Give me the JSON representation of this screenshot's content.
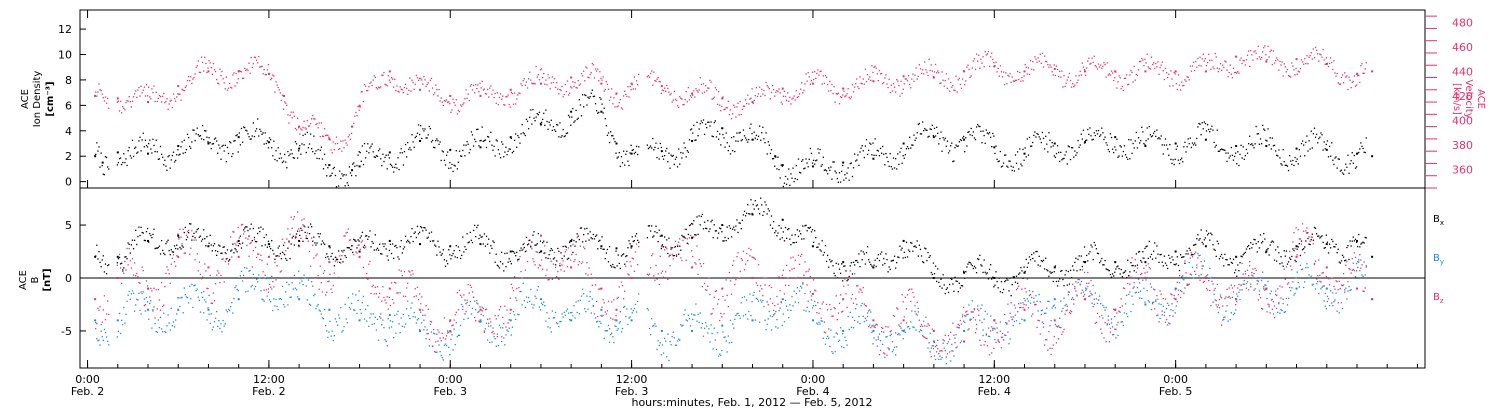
{
  "chart_data": [
    {
      "type": "scatter",
      "panel": "top",
      "ylabel_left": [
        "ACE",
        "Ion Density",
        "[cm⁻³]"
      ],
      "ylabel_right": [
        "ACE",
        "Velocity",
        "[km/s]"
      ],
      "ylim_left": [
        -0.5,
        13.5
      ],
      "ylim_right": [
        345,
        490
      ],
      "yticks_left": [
        0,
        2,
        4,
        6,
        8,
        10,
        12
      ],
      "yticks_right": [
        360,
        380,
        400,
        420,
        440,
        460,
        480
      ],
      "series": [
        {
          "axis": "left",
          "color": "#000000",
          "x": [
            0.5,
            1,
            2,
            4,
            6,
            8,
            10,
            12,
            14,
            16,
            17.5,
            18,
            20,
            22,
            24,
            26,
            28,
            30,
            32,
            34,
            35,
            36,
            38,
            40,
            42,
            44,
            45.5,
            46,
            48,
            50,
            52,
            54,
            56,
            58,
            60,
            62,
            64,
            66,
            68,
            70,
            72,
            74,
            76,
            78,
            80,
            82,
            84,
            85
          ],
          "y": [
            2,
            1.5,
            2.3,
            2.2,
            2.8,
            3,
            3.5,
            3.1,
            2.6,
            1.3,
            0.9,
            1.2,
            2.3,
            3.2,
            2.5,
            2.7,
            3.5,
            4.5,
            5.5,
            5.5,
            3,
            2.2,
            2.4,
            3.2,
            4.2,
            3.3,
            2,
            1.3,
            1.2,
            1.5,
            1.8,
            3,
            3.5,
            3.3,
            2.7,
            2.2,
            3,
            3.1,
            3.5,
            2.8,
            3,
            3.3,
            2.8,
            2.8,
            2.6,
            2.5,
            2.2,
            2
          ]
        },
        {
          "axis": "right",
          "color": "#E5336A",
          "x": [
            0.5,
            2,
            4,
            6,
            8,
            10,
            12,
            13,
            14,
            16,
            17.5,
            18,
            20,
            22,
            24,
            26,
            28,
            30,
            32,
            34,
            35,
            36,
            38,
            40,
            42,
            44,
            46,
            48,
            50,
            52,
            54,
            56,
            58,
            60,
            62,
            64,
            66,
            68,
            70,
            72,
            74,
            76,
            78,
            80,
            82,
            84,
            85
          ],
          "y": [
            420,
            418,
            415,
            428,
            440,
            440,
            438,
            420,
            395,
            385,
            395,
            412,
            440,
            425,
            420,
            420,
            425,
            430,
            435,
            430,
            422,
            430,
            428,
            422,
            418,
            415,
            426,
            430,
            426,
            432,
            436,
            435,
            440,
            444,
            440,
            442,
            440,
            440,
            440,
            440,
            440,
            452,
            448,
            450,
            446,
            438,
            440
          ]
        }
      ]
    },
    {
      "type": "scatter",
      "panel": "bottom",
      "ylabel_left": [
        "ACE",
        "B",
        "[nT]"
      ],
      "ylim": [
        -8.5,
        8.5
      ],
      "yticks": [
        -5,
        0,
        5
      ],
      "zero_line": true,
      "legend": {
        "position": "right",
        "entries": [
          "B",
          "B",
          "B"
        ],
        "subscripts": [
          "x",
          "y",
          "z"
        ]
      },
      "series": [
        {
          "name": "Bx",
          "color": "#000000",
          "x": [
            0.5,
            2,
            4,
            6,
            8,
            10,
            12,
            14,
            16,
            18,
            20,
            22,
            24,
            26,
            28,
            30,
            32,
            34,
            35,
            36,
            38,
            40,
            42,
            44,
            46,
            48,
            50,
            52,
            54,
            56,
            58,
            60,
            62,
            64,
            66,
            68,
            70,
            72,
            74,
            76,
            78,
            80,
            82,
            84,
            85
          ],
          "y": [
            2,
            2,
            3.5,
            4,
            3,
            3.5,
            3.2,
            3.5,
            3,
            2.5,
            3.5,
            3.2,
            3,
            3.2,
            2.5,
            2.5,
            3.5,
            3,
            2.8,
            3,
            4,
            3.8,
            5,
            6,
            5.5,
            3,
            1.5,
            1,
            3.5,
            0,
            0.5,
            0,
            0.5,
            1,
            1.5,
            1.5,
            1.5,
            2.5,
            3,
            2,
            2.5,
            3,
            3.2,
            3.5,
            2
          ]
        },
        {
          "name": "By",
          "color": "#1E88E5",
          "x": [
            0.5,
            2,
            4,
            6,
            8,
            10,
            12,
            14,
            16,
            18,
            20,
            22,
            24,
            26,
            28,
            30,
            32,
            34,
            35,
            36,
            38,
            40,
            42,
            44,
            46,
            48,
            50,
            52,
            54,
            56,
            58,
            60,
            62,
            64,
            66,
            68,
            70,
            72,
            74,
            76,
            78,
            80,
            82,
            84,
            85
          ],
          "y": [
            -4,
            -4,
            -3,
            -3,
            -3,
            -2,
            0,
            -2,
            -3,
            -4,
            -3.5,
            -5,
            -5,
            -4,
            -4,
            -2,
            -4,
            -3,
            -4,
            -4,
            -5,
            -5,
            -4.5,
            -4,
            -2,
            -4,
            -5,
            -5,
            -5,
            -6,
            -5,
            -4,
            -4,
            -2,
            -2,
            -3,
            -2.5,
            -1,
            0,
            -2,
            -1,
            -1,
            -1,
            0,
            -2
          ]
        },
        {
          "name": "Bz",
          "color": "#E5336A",
          "x": [
            0.5,
            2,
            4,
            6,
            8,
            10,
            12,
            14,
            16,
            18,
            20,
            22,
            24,
            26,
            28,
            30,
            32,
            34,
            35,
            36,
            38,
            40,
            42,
            44,
            46,
            48,
            50,
            52,
            54,
            56,
            58,
            60,
            62,
            64,
            66,
            68,
            70,
            72,
            74,
            76,
            78,
            80,
            82,
            84,
            85
          ],
          "y": [
            -2,
            0,
            -1,
            2,
            1,
            2,
            2,
            3,
            1.5,
            2,
            -1,
            -3,
            -4,
            -3,
            -3,
            4,
            1,
            -1,
            -3,
            0,
            3,
            1,
            -1,
            0,
            0,
            -1.5,
            -2,
            -4,
            -4,
            -5,
            -6,
            -4,
            -3,
            -4,
            -2,
            -3,
            0,
            -2,
            0,
            -2,
            -1,
            2,
            1,
            -1,
            -2
          ]
        }
      ]
    }
  ],
  "x_axis": {
    "xlim": [
      -0.5,
      88.5
    ],
    "ticks": [
      {
        "pos": 0,
        "time": "0:00",
        "date": "Feb. 2"
      },
      {
        "pos": 12,
        "time": "12:00",
        "date": "Feb. 2"
      },
      {
        "pos": 24,
        "time": "0:00",
        "date": "Feb. 3"
      },
      {
        "pos": 36,
        "time": "12:00",
        "date": "Feb. 3"
      },
      {
        "pos": 48,
        "time": "0:00",
        "date": "Feb. 4"
      },
      {
        "pos": 60,
        "time": "12:00",
        "date": "Feb. 4"
      },
      {
        "pos": 72,
        "time": "0:00",
        "date": "Feb. 5"
      }
    ],
    "xlabel": "hours:minutes, Feb.  1, 2012 — Feb.  5, 2012"
  },
  "colors": {
    "black": "#000000",
    "pink": "#E5336A",
    "blue": "#1E88E5"
  }
}
